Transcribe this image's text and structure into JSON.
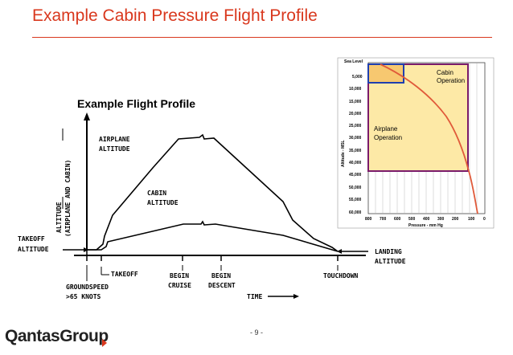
{
  "slide": {
    "title": "Example Cabin Pressure Flight Profile",
    "flight_profile_label": "Example Flight Profile",
    "page_number": "- 9 -",
    "logo_text": "QantasGroup"
  },
  "profile_diagram": {
    "y_axis_label_1": "ALTITUDE",
    "y_axis_label_2": "(AIRPLANE AND CABIN)",
    "airplane_label_1": "AIRPLANE",
    "airplane_label_2": "ALTITUDE",
    "cabin_label_1": "CABIN",
    "cabin_label_2": "ALTITUDE",
    "takeoff_alt_1": "TAKEOFF",
    "takeoff_alt_2": "ALTITUDE",
    "landing_alt_1": "LANDING",
    "landing_alt_2": "ALTITUDE",
    "takeoff": "TAKEOFF",
    "groundspeed_1": "GROUNDSPEED",
    "groundspeed_2": ">65 KNOTS",
    "begin_cruise_1": "BEGIN",
    "begin_cruise_2": "CRUISE",
    "begin_descent_1": "BEGIN",
    "begin_descent_2": "DESCENT",
    "touchdown": "TOUCHDOWN",
    "time": "TIME"
  },
  "inset_chart": {
    "y_axis_title": "Altitude - MSL",
    "x_axis_title": "Pressure - mm Hg",
    "y_ticks": [
      "Sea Level",
      "5,000",
      "10,000",
      "15,000",
      "20,000",
      "25,000",
      "30,000",
      "35,000",
      "40,000",
      "45,000",
      "50,000",
      "55,000",
      "60,000"
    ],
    "x_ticks": [
      "800",
      "700",
      "600",
      "500",
      "400",
      "300",
      "200",
      "100",
      "0"
    ],
    "cabin_label_1": "Cabin",
    "cabin_label_2": "Operation",
    "airplane_label_1": "Airplane",
    "airplane_label_2": "Operation",
    "colors": {
      "curve": "#e05a3a",
      "box_fill": "#fde9a6",
      "airplane_box": "#7a1b6b",
      "cabin_box": "#1f3fb0"
    }
  }
}
